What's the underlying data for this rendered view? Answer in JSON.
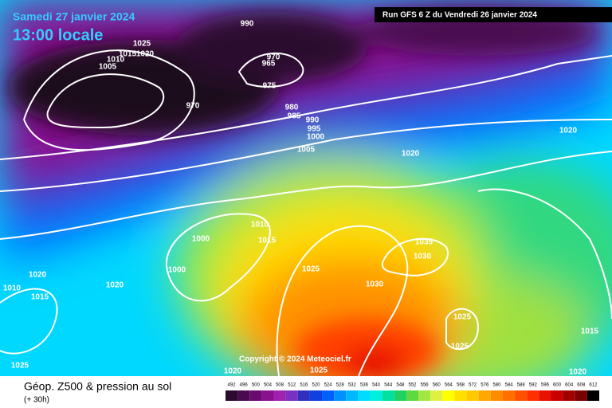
{
  "header": {
    "date": "Samedi 27 janvier 2024",
    "time": "13:00 locale",
    "run": "Run GFS 6 Z du Vendredi 26 janvier 2024"
  },
  "copyright": "Copyright © 2024 Meteociel.fr",
  "footer": {
    "title": "Géop. Z500 & pression au sol",
    "subtitle": "(+ 30h)"
  },
  "isobar_labels": [
    "990",
    "1025",
    "1020",
    "1015",
    "1010",
    "1005",
    "970",
    "965",
    "975",
    "970",
    "980",
    "985",
    "990",
    "995",
    "1000",
    "1005",
    "1020",
    "1020",
    "1000",
    "1010",
    "1015",
    "1000",
    "1025",
    "1035",
    "1030",
    "1030",
    "1020",
    "1020",
    "1010",
    "1015",
    "1025",
    "1025",
    "1015",
    "1025",
    "1020",
    "1025",
    "1020"
  ],
  "legend": {
    "labels": [
      "492",
      "496",
      "500",
      "504",
      "508",
      "512",
      "516",
      "520",
      "524",
      "528",
      "532",
      "536",
      "540",
      "544",
      "548",
      "552",
      "556",
      "560",
      "564",
      "568",
      "572",
      "576",
      "580",
      "584",
      "588",
      "592",
      "596",
      "600",
      "604",
      "608",
      "612"
    ],
    "colors": [
      "#2a0a2e",
      "#4a0a50",
      "#6a0a70",
      "#8a1090",
      "#a020b0",
      "#7a30c0",
      "#3030c0",
      "#1040e0",
      "#0060ff",
      "#0090ff",
      "#00b8ff",
      "#00dcff",
      "#00f0e0",
      "#00e0a0",
      "#20d060",
      "#60d840",
      "#a0e840",
      "#e0f040",
      "#ffff00",
      "#ffe000",
      "#ffc800",
      "#ffa800",
      "#ff8c00",
      "#ff7000",
      "#ff5000",
      "#ff3000",
      "#e81000",
      "#c80000",
      "#a00000",
      "#780000",
      "#000000"
    ]
  }
}
